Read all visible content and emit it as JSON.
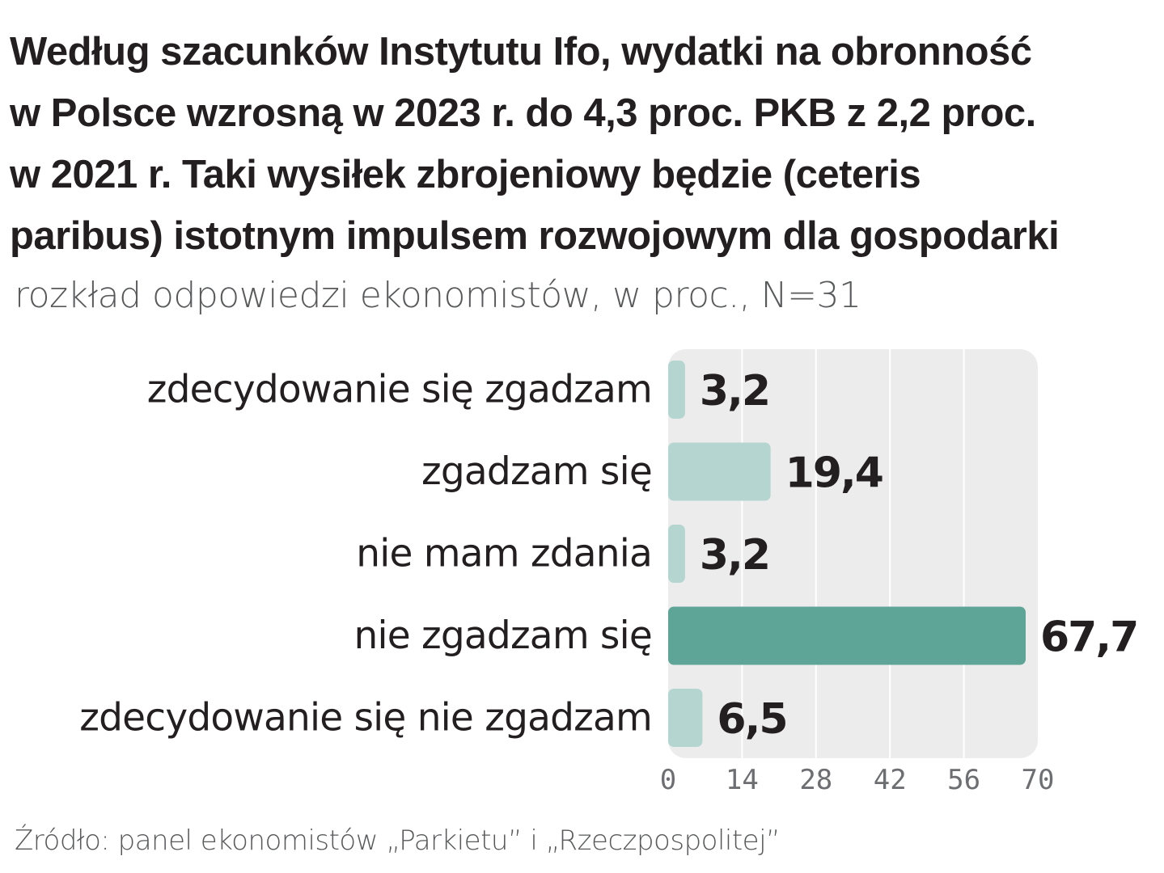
{
  "title_lines": [
    "Według szacunków Instytutu Ifo, wydatki na obronność",
    "w Polsce wzrosną w 2023 r. do 4,3 proc. PKB z 2,2 proc.",
    "w 2021 r. Taki wysiłek zbrojeniowy będzie (ceteris",
    "paribus) istotnym impulsem rozwojowym dla gospodarki"
  ],
  "subtitle": "rozkład odpowiedzi ekonomistów, w proc., N=31",
  "source": "Źródło: panel ekonomistów „Parkietu” i „Rzeczpospolitej”",
  "colors": {
    "bar_light": "#b5d6d0",
    "bar_highlight": "#5fa597",
    "panel_bg": "#ececec",
    "gridline": "#ffffff",
    "text": "#231f20"
  },
  "chart_data": {
    "type": "bar",
    "orientation": "horizontal",
    "categories": [
      "zdecydowanie się zgadzam",
      "zgadzam się",
      "nie mam zdania",
      "nie zgadzam się",
      "zdecydowanie się nie zgadzam"
    ],
    "values": [
      3.2,
      19.4,
      3.2,
      67.7,
      6.5
    ],
    "value_labels": [
      "3,2",
      "19,4",
      "3,2",
      "67,7",
      "6,5"
    ],
    "highlight_index": 3,
    "xlim": [
      0,
      70
    ],
    "xticks": [
      0,
      14,
      28,
      42,
      56,
      70
    ],
    "grid": true,
    "legend": "none"
  }
}
